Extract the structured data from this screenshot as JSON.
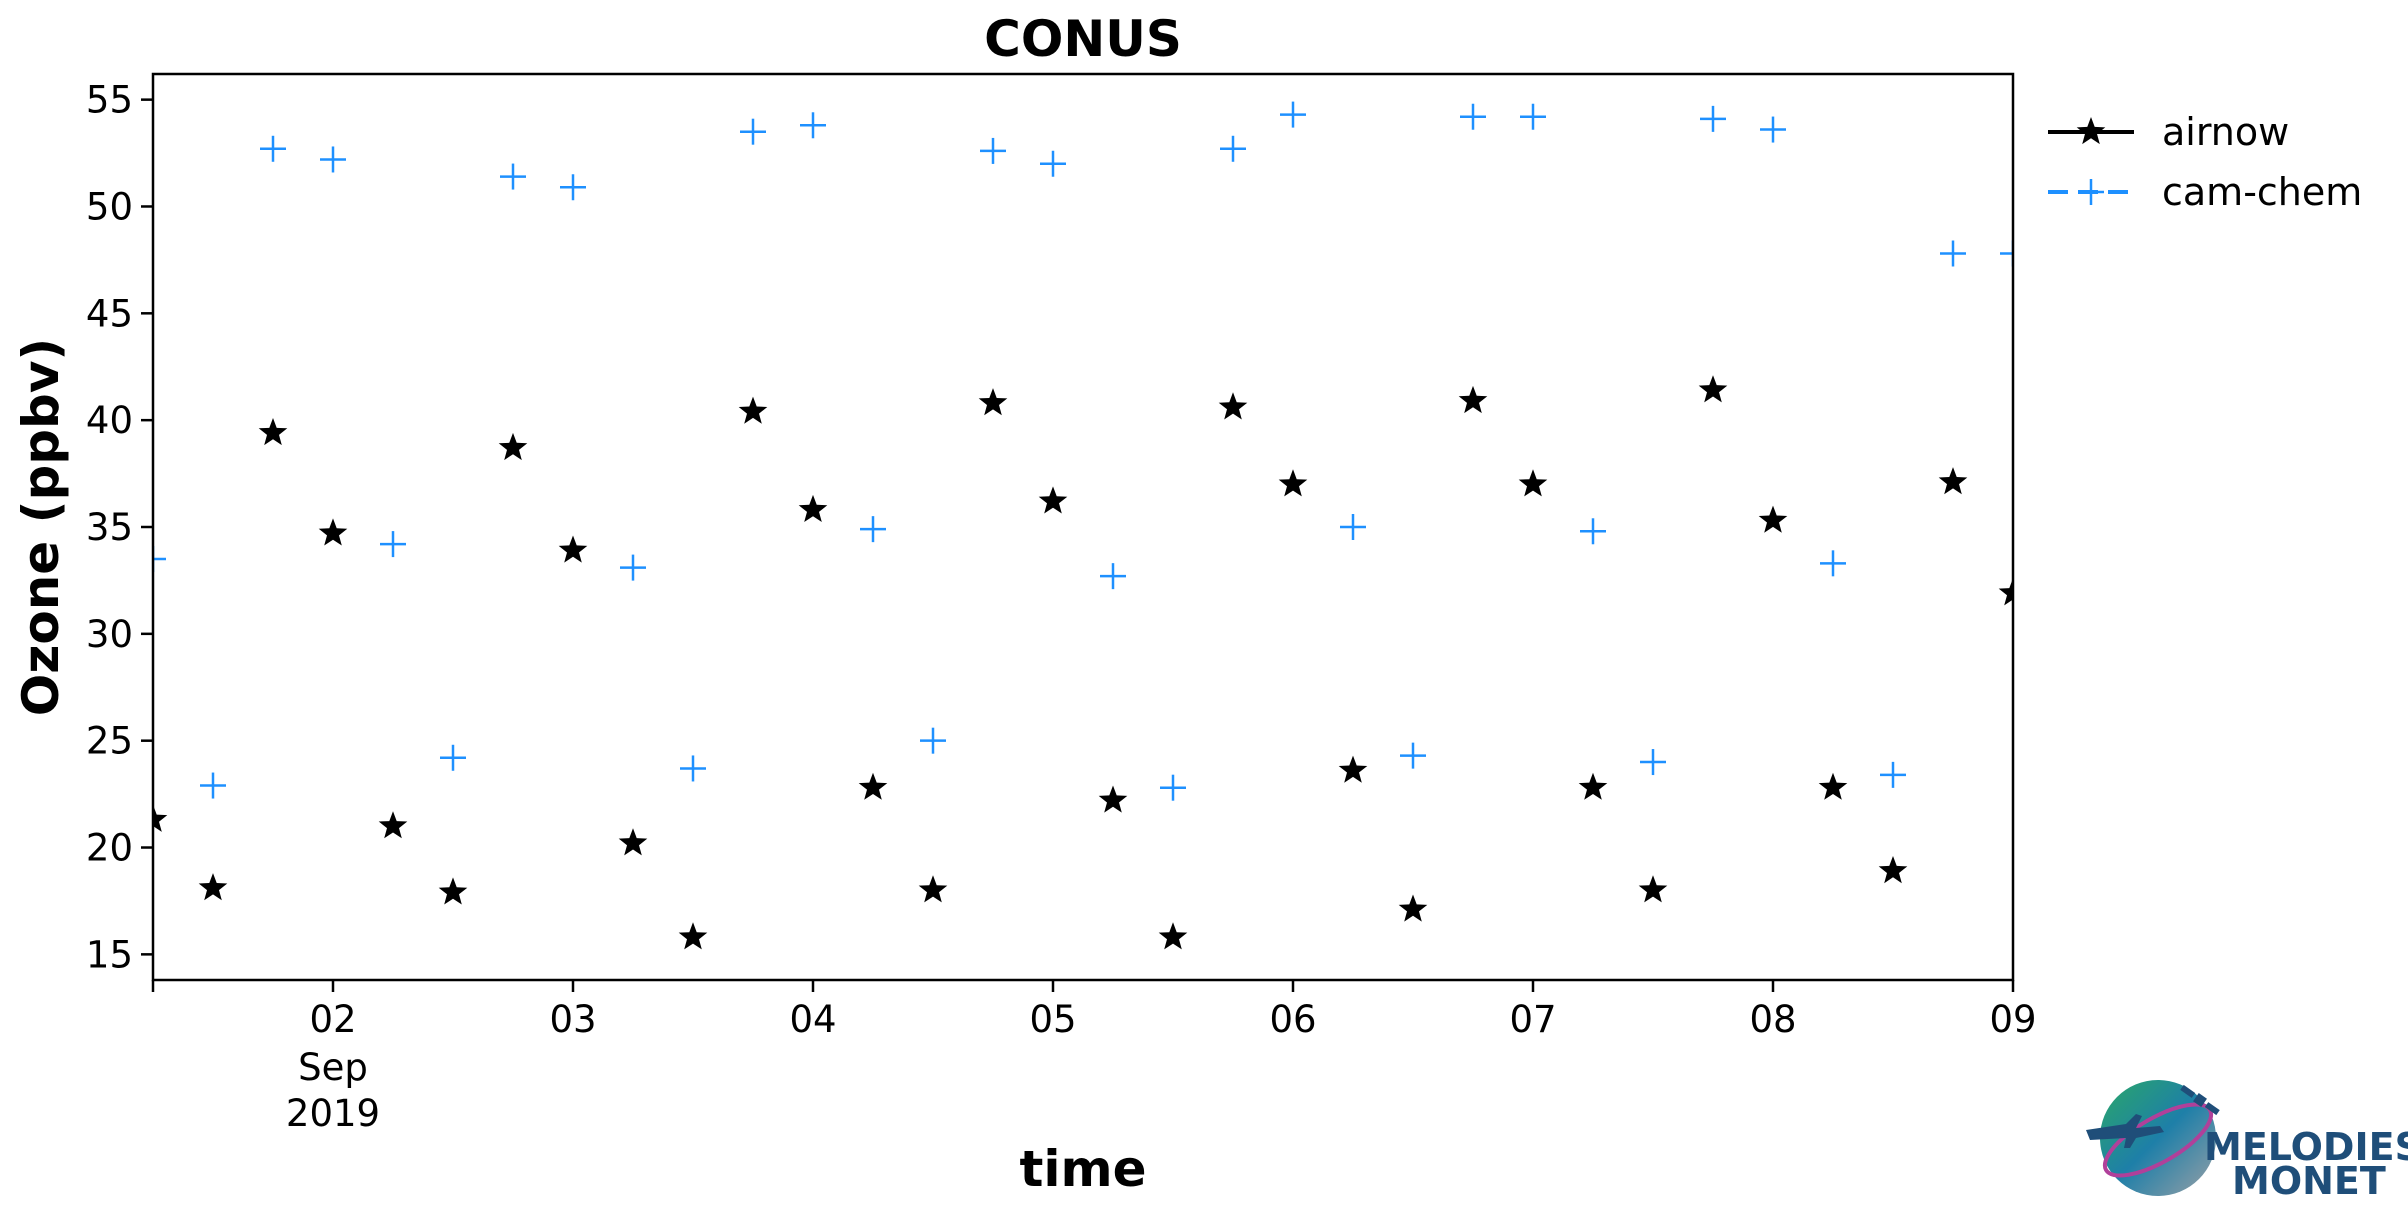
{
  "chart_data": {
    "type": "scatter",
    "title": "CONUS",
    "xlabel": "time",
    "ylabel": "Ozone (ppbv)",
    "x_axis": {
      "type": "date",
      "range": [
        "2019-09-01 06:00",
        "2019-09-09 00:00"
      ],
      "tick_labels": [
        "02",
        "03",
        "04",
        "05",
        "06",
        "07",
        "08",
        "09"
      ],
      "tick_dates": [
        "2019-09-02",
        "2019-09-03",
        "2019-09-04",
        "2019-09-05",
        "2019-09-06",
        "2019-09-07",
        "2019-09-08",
        "2019-09-09"
      ],
      "sub_labels": [
        "Sep",
        "2019"
      ]
    },
    "ylim": [
      13.8,
      56.2
    ],
    "y_ticks": [
      15,
      20,
      25,
      30,
      35,
      40,
      45,
      50,
      55
    ],
    "grid": false,
    "legend_position": "outside-right",
    "series": [
      {
        "name": "airnow",
        "marker": "star",
        "color": "#000000",
        "points": [
          [
            "2019-09-01 06:00",
            21.3
          ],
          [
            "2019-09-01 12:00",
            18.1
          ],
          [
            "2019-09-01 18:00",
            39.4
          ],
          [
            "2019-09-02 00:00",
            34.7
          ],
          [
            "2019-09-02 06:00",
            21.0
          ],
          [
            "2019-09-02 12:00",
            17.9
          ],
          [
            "2019-09-02 18:00",
            38.7
          ],
          [
            "2019-09-03 00:00",
            33.9
          ],
          [
            "2019-09-03 06:00",
            20.2
          ],
          [
            "2019-09-03 12:00",
            15.8
          ],
          [
            "2019-09-03 18:00",
            40.4
          ],
          [
            "2019-09-04 00:00",
            35.8
          ],
          [
            "2019-09-04 06:00",
            22.8
          ],
          [
            "2019-09-04 12:00",
            18.0
          ],
          [
            "2019-09-04 18:00",
            40.8
          ],
          [
            "2019-09-05 00:00",
            36.2
          ],
          [
            "2019-09-05 06:00",
            22.2
          ],
          [
            "2019-09-05 12:00",
            15.8
          ],
          [
            "2019-09-05 18:00",
            40.6
          ],
          [
            "2019-09-06 00:00",
            37.0
          ],
          [
            "2019-09-06 06:00",
            23.6
          ],
          [
            "2019-09-06 12:00",
            17.1
          ],
          [
            "2019-09-06 18:00",
            40.9
          ],
          [
            "2019-09-07 00:00",
            37.0
          ],
          [
            "2019-09-07 06:00",
            22.8
          ],
          [
            "2019-09-07 12:00",
            18.0
          ],
          [
            "2019-09-07 18:00",
            41.4
          ],
          [
            "2019-09-08 00:00",
            35.3
          ],
          [
            "2019-09-08 06:00",
            22.8
          ],
          [
            "2019-09-08 12:00",
            18.9
          ],
          [
            "2019-09-08 18:00",
            37.1
          ],
          [
            "2019-09-09 00:00",
            31.9
          ]
        ]
      },
      {
        "name": "cam-chem",
        "marker": "plus",
        "color": "#1e90ff",
        "points": [
          [
            "2019-09-01 06:00",
            33.5
          ],
          [
            "2019-09-01 12:00",
            22.9
          ],
          [
            "2019-09-01 18:00",
            52.7
          ],
          [
            "2019-09-02 00:00",
            52.2
          ],
          [
            "2019-09-02 06:00",
            34.2
          ],
          [
            "2019-09-02 12:00",
            24.2
          ],
          [
            "2019-09-02 18:00",
            51.4
          ],
          [
            "2019-09-03 00:00",
            50.9
          ],
          [
            "2019-09-03 06:00",
            33.1
          ],
          [
            "2019-09-03 12:00",
            23.7
          ],
          [
            "2019-09-03 18:00",
            53.5
          ],
          [
            "2019-09-04 00:00",
            53.8
          ],
          [
            "2019-09-04 06:00",
            34.9
          ],
          [
            "2019-09-04 12:00",
            25.0
          ],
          [
            "2019-09-04 18:00",
            52.6
          ],
          [
            "2019-09-05 00:00",
            52.0
          ],
          [
            "2019-09-05 06:00",
            32.7
          ],
          [
            "2019-09-05 12:00",
            22.8
          ],
          [
            "2019-09-05 18:00",
            52.7
          ],
          [
            "2019-09-06 00:00",
            54.3
          ],
          [
            "2019-09-06 06:00",
            35.0
          ],
          [
            "2019-09-06 12:00",
            24.3
          ],
          [
            "2019-09-06 18:00",
            54.2
          ],
          [
            "2019-09-07 00:00",
            54.2
          ],
          [
            "2019-09-07 06:00",
            34.8
          ],
          [
            "2019-09-07 12:00",
            24.0
          ],
          [
            "2019-09-07 18:00",
            54.1
          ],
          [
            "2019-09-08 00:00",
            53.6
          ],
          [
            "2019-09-08 06:00",
            33.3
          ],
          [
            "2019-09-08 12:00",
            23.4
          ],
          [
            "2019-09-08 18:00",
            47.8
          ],
          [
            "2019-09-09 00:00",
            47.8
          ]
        ]
      }
    ]
  },
  "logo": {
    "line1": "MELODIES",
    "line2": "MONET"
  }
}
